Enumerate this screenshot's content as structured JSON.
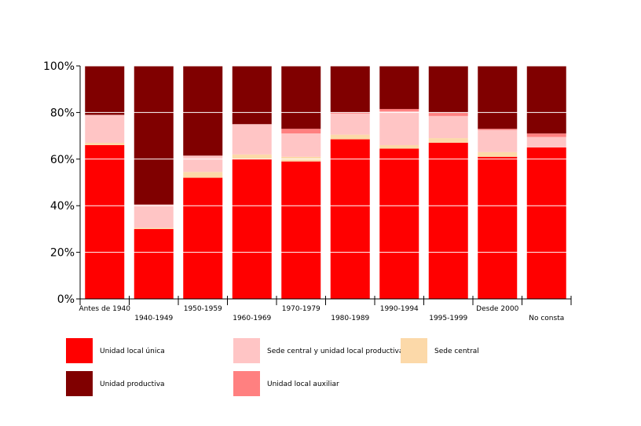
{
  "chart_data": {
    "type": "bar",
    "stacked": true,
    "normalized": true,
    "title": "",
    "xlabel": "",
    "ylabel": "",
    "ylim": [
      0,
      100
    ],
    "yticks": [
      "0%",
      "20%",
      "40%",
      "60%",
      "80%",
      "100%"
    ],
    "grid": true,
    "legend_position": "bottom",
    "categories": [
      "Antes de 1940",
      "1940-1949",
      "1950-1959",
      "1960-1969",
      "1970-1979",
      "1980-1989",
      "1990-1994",
      "1995-1999",
      "Desde 2000",
      "No consta"
    ],
    "series": [
      {
        "name": "Unidad local única",
        "color": "#ff0000",
        "values": [
          66,
          30,
          52,
          60,
          59,
          68.5,
          64.5,
          67,
          61,
          65
        ]
      },
      {
        "name": "Sede central",
        "color": "#fcd9a9",
        "values": [
          1,
          0.5,
          2.5,
          2,
          2,
          2,
          1.5,
          2,
          2,
          0
        ]
      },
      {
        "name": "Sede central y unidad local productiva",
        "color": "#ffc5c5",
        "values": [
          12,
          10,
          7,
          13,
          10,
          9,
          14.5,
          9.5,
          9.5,
          4.5
        ]
      },
      {
        "name": "Unidad local auxiliar",
        "color": "#ff8080",
        "values": [
          0,
          0,
          0,
          0,
          2,
          0.5,
          1,
          1.5,
          0.5,
          1.5
        ]
      },
      {
        "name": "Unidad productiva",
        "color": "#800000",
        "values": [
          21,
          59.5,
          38.5,
          25,
          27,
          20,
          18.5,
          20,
          27,
          29
        ]
      }
    ],
    "legend": [
      {
        "name": "Unidad local única",
        "color": "#ff0000"
      },
      {
        "name": "Sede central y unidad local productiva",
        "color": "#ffc5c5"
      },
      {
        "name": "Sede central",
        "color": "#fcd9a9"
      },
      {
        "name": "Unidad productiva",
        "color": "#800000"
      },
      {
        "name": "Unidad local auxiliar",
        "color": "#ff8080"
      }
    ]
  }
}
